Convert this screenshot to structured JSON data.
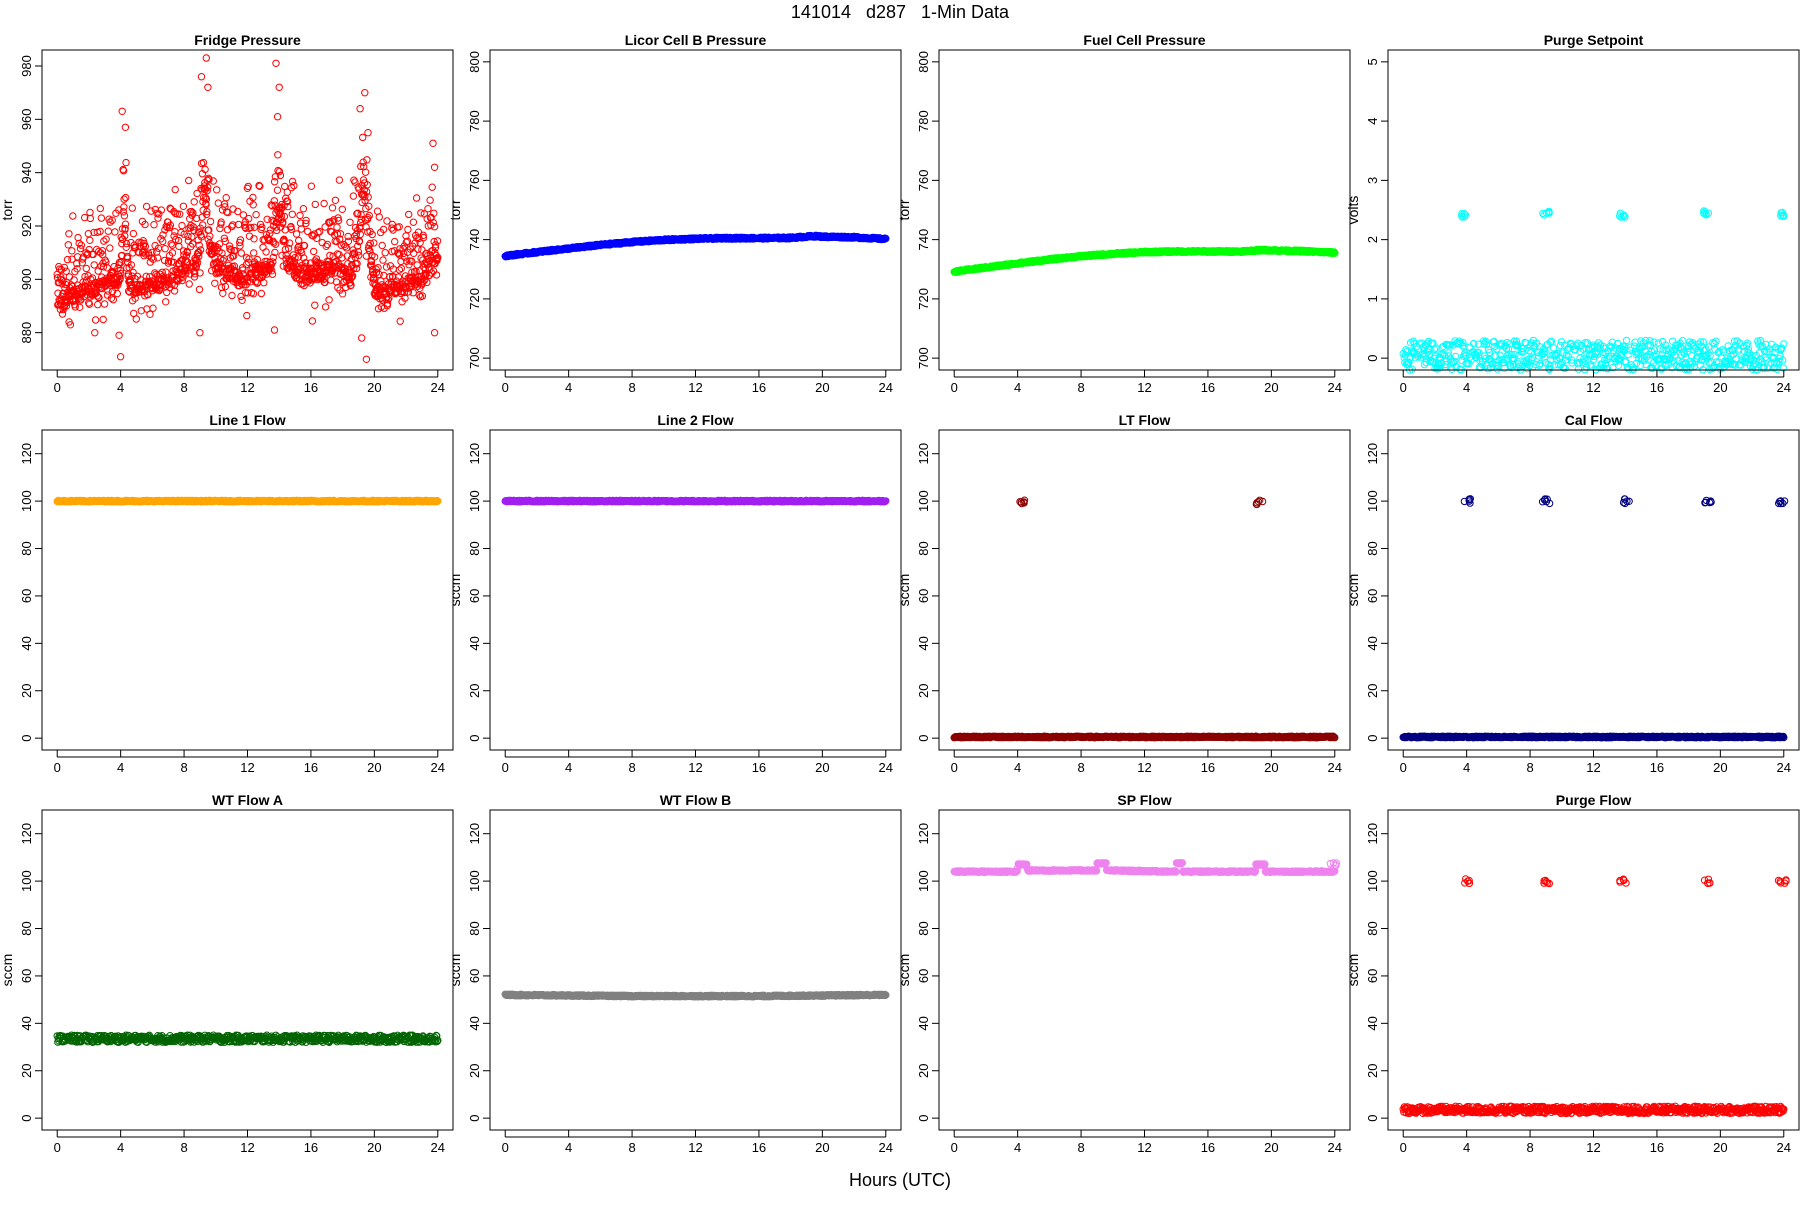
{
  "figure": {
    "title": "141014   d287   1-Min Data",
    "xlabel": "Hours (UTC)"
  },
  "chart_data": [
    {
      "type": "scatter",
      "title": "Fridge Pressure",
      "ylabel": "torr",
      "color": "#ff0000",
      "pattern": "noisy",
      "xlim": [
        0,
        24
      ],
      "ylim": [
        866,
        986
      ],
      "xticks": [
        0,
        4,
        8,
        12,
        16,
        20,
        24
      ],
      "yticks": [
        880,
        900,
        920,
        940,
        960,
        980
      ],
      "series": [
        {
          "x": [
            0,
            0.5,
            1,
            1.5,
            2,
            2.5,
            3,
            3.5,
            4,
            4.2,
            4.5,
            5,
            5.5,
            6,
            6.5,
            7,
            7.5,
            8,
            8.5,
            9,
            9.3,
            9.6,
            10,
            10.5,
            11,
            11.5,
            12,
            12.5,
            13,
            13.5,
            14,
            14.5,
            15,
            15.5,
            16,
            16.5,
            17,
            17.5,
            18,
            18.5,
            19,
            19.3,
            19.6,
            20,
            20.5,
            21,
            21.5,
            22,
            22.5,
            23,
            23.5,
            24
          ],
          "y": [
            900,
            902,
            904,
            905,
            906,
            907,
            908,
            909,
            912,
            935,
            910,
            906,
            907,
            908,
            909,
            910,
            911,
            913,
            915,
            918,
            945,
            925,
            915,
            913,
            912,
            911,
            912,
            913,
            914,
            915,
            935,
            918,
            913,
            912,
            911,
            912,
            913,
            914,
            912,
            911,
            920,
            945,
            925,
            908,
            905,
            906,
            907,
            908,
            909,
            908,
            915,
            920
          ]
        }
      ],
      "spread": 30,
      "spikes": [
        {
          "x": 4.1,
          "y": 963
        },
        {
          "x": 4.3,
          "y": 957
        },
        {
          "x": 4.0,
          "y": 871
        },
        {
          "x": 3.9,
          "y": 879
        },
        {
          "x": 9.1,
          "y": 976
        },
        {
          "x": 9.4,
          "y": 983
        },
        {
          "x": 9.5,
          "y": 972
        },
        {
          "x": 9.0,
          "y": 880
        },
        {
          "x": 13.8,
          "y": 981
        },
        {
          "x": 14.0,
          "y": 972
        },
        {
          "x": 13.9,
          "y": 961
        },
        {
          "x": 13.7,
          "y": 881
        },
        {
          "x": 19.1,
          "y": 964
        },
        {
          "x": 19.4,
          "y": 970
        },
        {
          "x": 19.6,
          "y": 955
        },
        {
          "x": 19.5,
          "y": 870
        },
        {
          "x": 19.2,
          "y": 878
        },
        {
          "x": 23.7,
          "y": 951
        },
        {
          "x": 23.8,
          "y": 942
        },
        {
          "x": 23.8,
          "y": 880
        }
      ]
    },
    {
      "type": "scatter",
      "title": "Licor Cell B Pressure",
      "ylabel": "torr",
      "color": "#0000ff",
      "pattern": "smooth",
      "xlim": [
        0,
        24
      ],
      "ylim": [
        696,
        804
      ],
      "xticks": [
        0,
        4,
        8,
        12,
        16,
        20,
        24
      ],
      "yticks": [
        700,
        720,
        740,
        760,
        780,
        800
      ],
      "series": [
        {
          "x": [
            0,
            2,
            4,
            6,
            8,
            10,
            12,
            14,
            16,
            18,
            19.5,
            20,
            22,
            24
          ],
          "y": [
            734.5,
            735.8,
            737,
            738.2,
            739.2,
            739.9,
            740.3,
            740.5,
            740.5,
            740.6,
            741.2,
            741,
            740.8,
            740.2
          ]
        }
      ]
    },
    {
      "type": "scatter",
      "title": "Fuel Cell Pressure",
      "ylabel": "torr",
      "color": "#00ff00",
      "pattern": "smooth",
      "xlim": [
        0,
        24
      ],
      "ylim": [
        696,
        804
      ],
      "xticks": [
        0,
        4,
        8,
        12,
        16,
        20,
        24
      ],
      "yticks": [
        700,
        720,
        740,
        760,
        780,
        800
      ],
      "series": [
        {
          "x": [
            0,
            2,
            4,
            6,
            8,
            10,
            12,
            14,
            16,
            18,
            19.5,
            20,
            22,
            24
          ],
          "y": [
            729.2,
            730.6,
            732,
            733.3,
            734.4,
            735.2,
            735.8,
            736,
            736,
            736,
            736.5,
            736.4,
            736.1,
            735.6
          ]
        }
      ]
    },
    {
      "type": "scatter",
      "title": "Purge Setpoint",
      "ylabel": "volts",
      "color": "#00ffff",
      "pattern": "baseline",
      "xlim": [
        0,
        24
      ],
      "ylim": [
        -0.2,
        5.2
      ],
      "xticks": [
        0,
        4,
        8,
        12,
        16,
        20,
        24
      ],
      "yticks": [
        0,
        1,
        2,
        3,
        4,
        5
      ],
      "series": [
        {
          "x": [
            0,
            24
          ],
          "y": [
            0,
            0
          ]
        }
      ],
      "clusters": [
        {
          "x": 3.9,
          "y": 2.42
        },
        {
          "x": 9.0,
          "y": 2.45
        },
        {
          "x": 13.8,
          "y": 2.42
        },
        {
          "x": 19.0,
          "y": 2.46
        },
        {
          "x": 23.8,
          "y": 2.43
        }
      ]
    },
    {
      "type": "scatter",
      "title": "Line 1 Flow",
      "ylabel": "",
      "color": "#ffa500",
      "pattern": "flat",
      "xlim": [
        0,
        24
      ],
      "ylim": [
        -5,
        130
      ],
      "xticks": [
        0,
        4,
        8,
        12,
        16,
        20,
        24
      ],
      "yticks": [
        0,
        20,
        40,
        60,
        80,
        100,
        120
      ],
      "series": [
        {
          "x": [
            0,
            24
          ],
          "y": [
            100,
            100
          ]
        }
      ]
    },
    {
      "type": "scatter",
      "title": "Line 2 Flow",
      "ylabel": "sccm",
      "color": "#a020f0",
      "pattern": "flat",
      "xlim": [
        0,
        24
      ],
      "ylim": [
        -5,
        130
      ],
      "xticks": [
        0,
        4,
        8,
        12,
        16,
        20,
        24
      ],
      "yticks": [
        0,
        20,
        40,
        60,
        80,
        100,
        120
      ],
      "series": [
        {
          "x": [
            0,
            24
          ],
          "y": [
            100,
            100
          ]
        }
      ]
    },
    {
      "type": "scatter",
      "title": "LT Flow",
      "ylabel": "sccm",
      "color": "#8b0000",
      "pattern": "baseline",
      "xlim": [
        0,
        24
      ],
      "ylim": [
        -5,
        130
      ],
      "xticks": [
        0,
        4,
        8,
        12,
        16,
        20,
        24
      ],
      "yticks": [
        0,
        20,
        40,
        60,
        80,
        100,
        120
      ],
      "series": [
        {
          "x": [
            0,
            24
          ],
          "y": [
            0.5,
            0.5
          ]
        }
      ],
      "clusters": [
        {
          "x": 4.2,
          "y": 99.5
        },
        {
          "x": 19.3,
          "y": 99.5
        }
      ]
    },
    {
      "type": "scatter",
      "title": "Cal Flow",
      "ylabel": "sccm",
      "color": "#000080",
      "pattern": "baseline",
      "xlim": [
        0,
        24
      ],
      "ylim": [
        -5,
        130
      ],
      "xticks": [
        0,
        4,
        8,
        12,
        16,
        20,
        24
      ],
      "yticks": [
        0,
        20,
        40,
        60,
        80,
        100,
        120
      ],
      "series": [
        {
          "x": [
            0,
            24
          ],
          "y": [
            0.5,
            0.5
          ]
        }
      ],
      "clusters": [
        {
          "x": 4.0,
          "y": 100
        },
        {
          "x": 9.0,
          "y": 100
        },
        {
          "x": 14.0,
          "y": 100
        },
        {
          "x": 19.2,
          "y": 100
        },
        {
          "x": 23.9,
          "y": 100
        }
      ]
    },
    {
      "type": "scatter",
      "title": "WT Flow A",
      "ylabel": "sccm",
      "color": "#006400",
      "pattern": "band",
      "xlim": [
        0,
        24
      ],
      "ylim": [
        -5,
        130
      ],
      "xticks": [
        0,
        4,
        8,
        12,
        16,
        20,
        24
      ],
      "yticks": [
        0,
        20,
        40,
        60,
        80,
        100,
        120
      ],
      "series": [
        {
          "x": [
            0,
            24
          ],
          "y": [
            33.5,
            33.5
          ]
        }
      ],
      "spread": 3
    },
    {
      "type": "scatter",
      "title": "WT Flow B",
      "ylabel": "sccm",
      "color": "#808080",
      "pattern": "flat",
      "xlim": [
        0,
        24
      ],
      "ylim": [
        -5,
        130
      ],
      "xticks": [
        0,
        4,
        8,
        12,
        16,
        20,
        24
      ],
      "yticks": [
        0,
        20,
        40,
        60,
        80,
        100,
        120
      ],
      "series": [
        {
          "x": [
            0,
            8,
            16,
            24
          ],
          "y": [
            52,
            51.5,
            51.5,
            52
          ]
        }
      ]
    },
    {
      "type": "scatter",
      "title": "SP Flow",
      "ylabel": "sccm",
      "color": "#ee82ee",
      "pattern": "steps",
      "xlim": [
        0,
        24
      ],
      "ylim": [
        -5,
        130
      ],
      "xticks": [
        0,
        4,
        8,
        12,
        16,
        20,
        24
      ],
      "yticks": [
        0,
        20,
        40,
        60,
        80,
        100,
        120
      ],
      "series": [
        {
          "x": [
            0,
            4,
            4.01,
            4.6,
            4.61,
            9,
            9.01,
            9.6,
            9.61,
            14,
            14.01,
            14.4,
            14.41,
            19,
            19.01,
            19.6,
            19.61,
            24
          ],
          "y": [
            104,
            104,
            107,
            107,
            104.5,
            104.5,
            107.5,
            107.5,
            104.5,
            104,
            107.5,
            107.5,
            104,
            104,
            107,
            107,
            104,
            104
          ]
        }
      ],
      "clusters": [
        {
          "x": 23.9,
          "y": 107
        }
      ]
    },
    {
      "type": "scatter",
      "title": "Purge Flow",
      "ylabel": "sccm",
      "color": "#ff0000",
      "pattern": "band",
      "xlim": [
        0,
        24
      ],
      "ylim": [
        -5,
        130
      ],
      "xticks": [
        0,
        4,
        8,
        12,
        16,
        20,
        24
      ],
      "yticks": [
        0,
        20,
        40,
        60,
        80,
        100,
        120
      ],
      "series": [
        {
          "x": [
            0,
            24
          ],
          "y": [
            3.5,
            3.5
          ]
        }
      ],
      "spread": 3,
      "clusters": [
        {
          "x": 4.0,
          "y": 100
        },
        {
          "x": 9.0,
          "y": 100
        },
        {
          "x": 13.9,
          "y": 100
        },
        {
          "x": 19.1,
          "y": 100
        },
        {
          "x": 23.9,
          "y": 100
        }
      ]
    }
  ]
}
